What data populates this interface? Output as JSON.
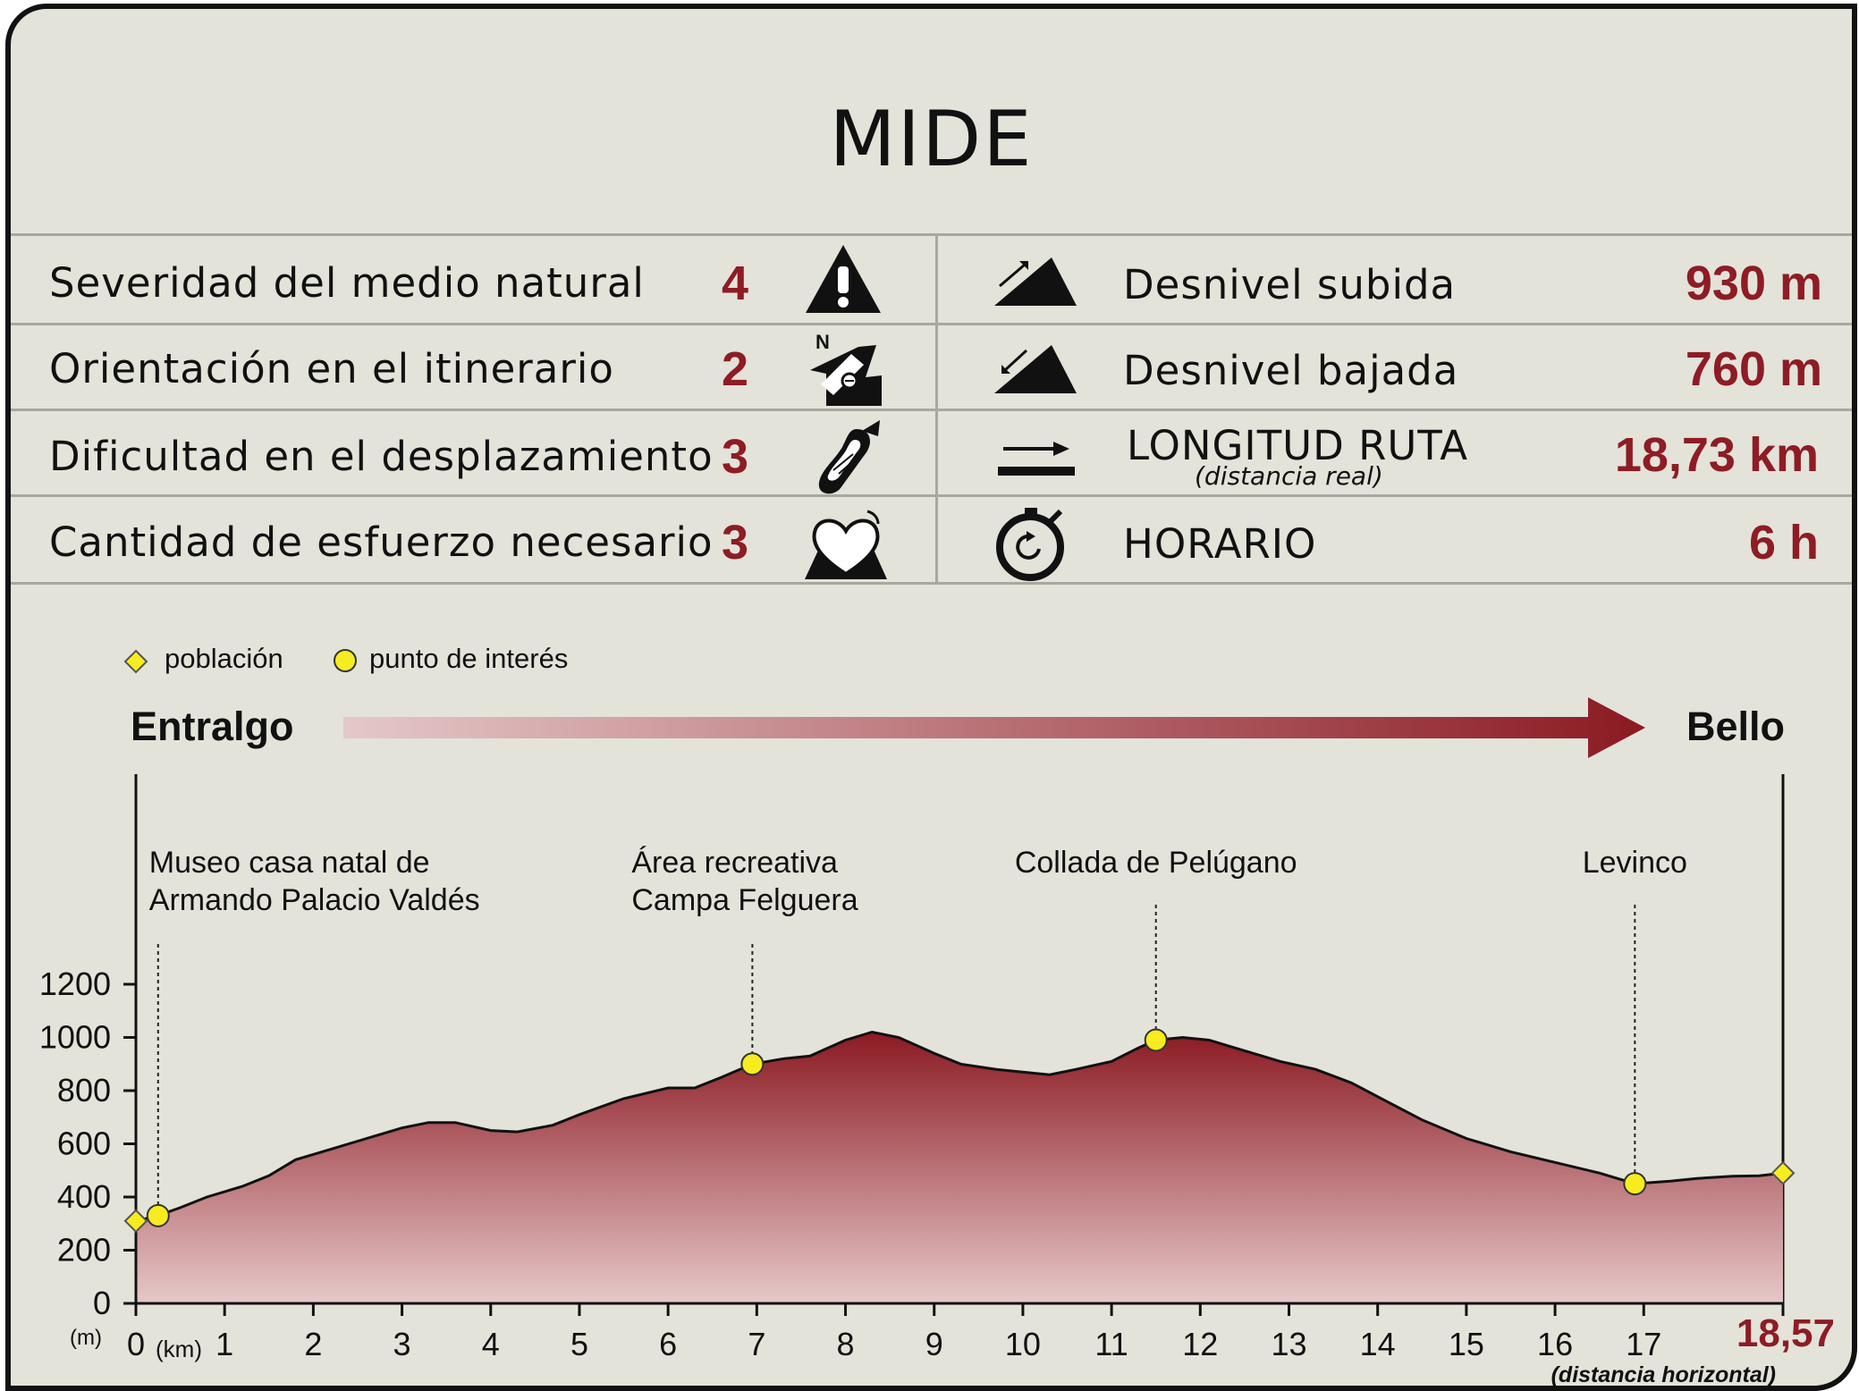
{
  "title": "MIDE",
  "mide": [
    {
      "label": "Severidad del medio natural",
      "value": "4",
      "icon": "warning-triangle-icon"
    },
    {
      "label": "Orientación en el itinerario",
      "value": "2",
      "icon": "compass-orientation-icon"
    },
    {
      "label": "Dificultad en el desplazamiento",
      "value": "3",
      "icon": "footprint-icon"
    },
    {
      "label": "Cantidad de esfuerzo necesario",
      "value": "3",
      "icon": "heart-mountain-icon"
    }
  ],
  "stats": [
    {
      "label": "Desnivel subida",
      "value": "930 m",
      "icon": "ascent-slope-icon"
    },
    {
      "label": "Desnivel bajada",
      "value": "760 m",
      "icon": "descent-slope-icon"
    },
    {
      "label": "LONGITUD RUTA",
      "sublabel": "(distancia real)",
      "value": "18,73 km",
      "icon": "distance-arrow-icon"
    },
    {
      "label": "HORARIO",
      "value": "6 h",
      "icon": "stopwatch-icon"
    }
  ],
  "legend": {
    "town": "población",
    "poi": "punto de interés"
  },
  "route": {
    "start": "Entralgo",
    "end": "Bello"
  },
  "colors": {
    "accent": "#8e1c24",
    "profile_top": "#8b1a22",
    "profile_bottom": "#e6c8c9",
    "marker": "#f7ec1f",
    "background": "#e3e3da"
  },
  "chart_data": {
    "type": "area",
    "xlabel": "(km)",
    "ylabel": "(m)",
    "xlim": [
      0,
      18.57
    ],
    "ylim": [
      0,
      1200
    ],
    "x_ticks": [
      "0",
      "1",
      "2",
      "3",
      "4",
      "5",
      "6",
      "7",
      "8",
      "9",
      "10",
      "11",
      "12",
      "13",
      "14",
      "15",
      "16",
      "17"
    ],
    "y_ticks": [
      "0",
      "200",
      "400",
      "600",
      "800",
      "1000",
      "1200"
    ],
    "end_label": "18,57",
    "end_sublabel": "(distancia horizontal)",
    "profile": [
      [
        0,
        310
      ],
      [
        0.25,
        330
      ],
      [
        0.5,
        360
      ],
      [
        0.8,
        400
      ],
      [
        1.2,
        440
      ],
      [
        1.5,
        480
      ],
      [
        1.8,
        540
      ],
      [
        2.1,
        570
      ],
      [
        2.5,
        610
      ],
      [
        3.0,
        660
      ],
      [
        3.3,
        680
      ],
      [
        3.6,
        680
      ],
      [
        4.0,
        650
      ],
      [
        4.3,
        645
      ],
      [
        4.7,
        670
      ],
      [
        5.0,
        710
      ],
      [
        5.5,
        770
      ],
      [
        6.0,
        810
      ],
      [
        6.3,
        810
      ],
      [
        6.6,
        850
      ],
      [
        6.95,
        900
      ],
      [
        7.3,
        920
      ],
      [
        7.6,
        930
      ],
      [
        8.0,
        990
      ],
      [
        8.3,
        1020
      ],
      [
        8.6,
        1000
      ],
      [
        9.0,
        940
      ],
      [
        9.3,
        900
      ],
      [
        9.7,
        880
      ],
      [
        10.0,
        870
      ],
      [
        10.3,
        860
      ],
      [
        10.6,
        880
      ],
      [
        11.0,
        910
      ],
      [
        11.3,
        960
      ],
      [
        11.5,
        990
      ],
      [
        11.8,
        1000
      ],
      [
        12.1,
        990
      ],
      [
        12.5,
        950
      ],
      [
        12.9,
        910
      ],
      [
        13.3,
        880
      ],
      [
        13.7,
        830
      ],
      [
        14.1,
        760
      ],
      [
        14.5,
        690
      ],
      [
        15.0,
        620
      ],
      [
        15.5,
        570
      ],
      [
        16.0,
        530
      ],
      [
        16.5,
        490
      ],
      [
        16.9,
        450
      ],
      [
        17.3,
        460
      ],
      [
        17.6,
        470
      ],
      [
        18.0,
        478
      ],
      [
        18.3,
        480
      ],
      [
        18.57,
        490
      ]
    ],
    "towns": [
      {
        "x": 0,
        "y": 310,
        "label": "Entralgo"
      },
      {
        "x": 18.57,
        "y": 490,
        "label": "Bello"
      }
    ],
    "points_of_interest": [
      {
        "x": 0.25,
        "y": 330,
        "label": [
          "Museo casa natal de",
          "Armando Palacio Valdés"
        ]
      },
      {
        "x": 6.95,
        "y": 900,
        "label": [
          "Área recreativa",
          "Campa Felguera"
        ]
      },
      {
        "x": 11.5,
        "y": 990,
        "label": [
          "Collada de Pelúgano"
        ]
      },
      {
        "x": 16.9,
        "y": 450,
        "label": [
          "Levinco"
        ]
      }
    ]
  }
}
